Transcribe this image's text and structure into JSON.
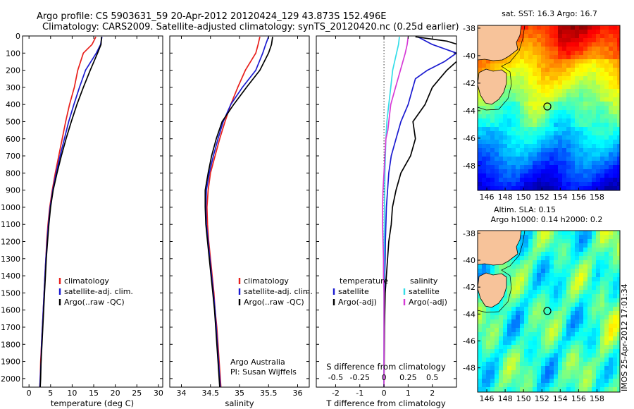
{
  "title": {
    "line1": "Argo profile: CS 5903631_59 20-Apr-2012 20120424_129 43.873S 152.496E",
    "line2": "Climatology: CARS2009. Satellite-adjusted climatology: synTS_20120420.nc (0.25d earlier)"
  },
  "colors": {
    "climatology": "#e8201c",
    "satellite": "#1a1ad0",
    "argo": "#000000",
    "salinity_satellite": "#33dde8",
    "salinity_argo": "#d63ad6"
  },
  "chart_data": [
    {
      "type": "line",
      "name": "temperature",
      "xlabel": "temperature (deg C)",
      "xlim": [
        -1.5,
        31
      ],
      "xticks": [
        "0",
        "5",
        "10",
        "15",
        "20",
        "25",
        "30"
      ],
      "ylim": [
        0,
        2050
      ],
      "yticks": [
        "0",
        "100",
        "200",
        "300",
        "400",
        "500",
        "600",
        "700",
        "800",
        "900",
        "1000",
        "1100",
        "1200",
        "1300",
        "1400",
        "1500",
        "1600",
        "1700",
        "1800",
        "1900",
        "2000"
      ],
      "legend": [
        "climatology",
        "satellite-adj. clim.",
        "Argo(..raw -QC)"
      ],
      "series": [
        {
          "name": "climatology",
          "color": "#e8201c",
          "depth": [
            5,
            50,
            100,
            200,
            300,
            400,
            500,
            600,
            700,
            800,
            900,
            1000,
            1100,
            1200,
            1300,
            1400,
            1500,
            1600,
            1700,
            1800,
            1900,
            2000,
            2050
          ],
          "values": [
            15.5,
            14.6,
            12.6,
            11.3,
            10.5,
            9.4,
            8.5,
            7.7,
            6.9,
            6.1,
            5.4,
            4.8,
            4.4,
            4.1,
            3.9,
            3.7,
            3.5,
            3.3,
            3.1,
            2.9,
            2.7,
            2.6,
            2.5
          ]
        },
        {
          "name": "satellite-adj. clim.",
          "color": "#1a1ad0",
          "depth": [
            5,
            50,
            100,
            200,
            300,
            400,
            500,
            600,
            700,
            800,
            900,
            1000,
            1100,
            1200,
            1300,
            1400,
            1500,
            1600,
            1700,
            1800,
            1900,
            2000,
            2050
          ],
          "values": [
            16.9,
            16.6,
            15.6,
            13.1,
            11.7,
            10.4,
            9.2,
            8.2,
            7.2,
            6.3,
            5.5,
            4.9,
            4.5,
            4.2,
            3.9,
            3.7,
            3.5,
            3.3,
            3.1,
            2.9,
            2.8,
            2.6,
            2.5
          ]
        },
        {
          "name": "Argo(..raw -QC)",
          "color": "#000000",
          "depth": [
            5,
            50,
            100,
            200,
            300,
            400,
            500,
            600,
            700,
            800,
            900,
            1000,
            1100,
            1200,
            1300,
            1400,
            1500,
            1600,
            1700,
            1800,
            1900,
            2000,
            2050
          ],
          "values": [
            16.8,
            16.7,
            15.9,
            14.2,
            12.6,
            11.1,
            9.8,
            8.6,
            7.5,
            6.5,
            5.6,
            5.0,
            4.6,
            4.3,
            4.0,
            3.8,
            3.6,
            3.4,
            3.2,
            3.0,
            2.8,
            2.7,
            2.6
          ]
        }
      ]
    },
    {
      "type": "line",
      "name": "salinity",
      "xlabel": "salinity",
      "xlim": [
        33.8,
        36.2
      ],
      "xticks": [
        "34",
        "34.5",
        "35",
        "35.5",
        "36"
      ],
      "ylim": [
        0,
        2050
      ],
      "legend": [
        "climatology",
        "satellite-adj. clim.",
        "Argo(..raw -QC)"
      ],
      "annotation": [
        "Argo Australia",
        "PI: Susan Wijffels"
      ],
      "series": [
        {
          "name": "climatology",
          "color": "#e8201c",
          "depth": [
            5,
            50,
            100,
            200,
            300,
            400,
            500,
            600,
            700,
            800,
            900,
            1000,
            1100,
            1200,
            1300,
            1400,
            1500,
            1600,
            1700,
            1800,
            1900,
            2000,
            2050
          ],
          "values": [
            35.35,
            35.32,
            35.28,
            35.1,
            34.97,
            34.85,
            34.75,
            34.66,
            34.58,
            34.5,
            34.46,
            34.44,
            34.45,
            34.47,
            34.5,
            34.53,
            34.56,
            34.58,
            34.61,
            34.63,
            34.65,
            34.67,
            34.68
          ]
        },
        {
          "name": "satellite-adj. clim.",
          "color": "#1a1ad0",
          "depth": [
            5,
            50,
            100,
            200,
            300,
            400,
            500,
            600,
            700,
            800,
            900,
            1000,
            1100,
            1200,
            1300,
            1400,
            1500,
            1600,
            1700,
            1800,
            1900,
            2000,
            2050
          ],
          "values": [
            35.5,
            35.45,
            35.4,
            35.28,
            35.05,
            34.85,
            34.72,
            34.63,
            34.55,
            34.48,
            34.43,
            34.42,
            34.43,
            34.46,
            34.49,
            34.52,
            34.55,
            34.58,
            34.6,
            34.62,
            34.64,
            34.66,
            34.67
          ]
        },
        {
          "name": "Argo(..raw -QC)",
          "color": "#000000",
          "depth": [
            5,
            50,
            100,
            200,
            300,
            400,
            500,
            600,
            700,
            800,
            900,
            1000,
            1100,
            1200,
            1300,
            1400,
            1500,
            1600,
            1700,
            1800,
            1900,
            2000,
            2050
          ],
          "values": [
            35.57,
            35.55,
            35.5,
            35.35,
            35.12,
            34.9,
            34.7,
            34.6,
            34.52,
            34.46,
            34.41,
            34.41,
            34.42,
            34.45,
            34.48,
            34.51,
            34.54,
            34.57,
            34.59,
            34.61,
            34.63,
            34.65,
            34.66
          ]
        }
      ]
    },
    {
      "type": "line",
      "name": "differences",
      "xlabel": "T difference from climatology",
      "xlabel_top": "S difference from climatology",
      "xlim": [
        -2.8,
        3.0
      ],
      "xticks": [
        "-2",
        "-1",
        "0",
        "1",
        "2"
      ],
      "xticks_values": [
        -2,
        -1,
        0,
        1,
        2
      ],
      "xticks_top": [
        "-0.5",
        "-0.25",
        "0",
        "0.25",
        "0.5"
      ],
      "xticks_top_values": [
        -0.5,
        -0.25,
        0,
        0.25,
        0.5
      ],
      "ylim": [
        0,
        2050
      ],
      "legend_temperature_title": "temperature",
      "legend_temperature": [
        "satellite",
        "Argo(-adj)"
      ],
      "legend_salinity_title": "salinity",
      "legend_salinity": [
        "satellite",
        "Argo(-adj)"
      ],
      "series": [
        {
          "name": "T satellite",
          "color": "#1a1ad0",
          "units": "T",
          "depth": [
            5,
            50,
            100,
            150,
            200,
            250,
            300,
            400,
            500,
            600,
            700,
            800,
            900,
            1000,
            1100,
            1200,
            1300,
            1400,
            1500,
            1700,
            1900,
            2050
          ],
          "values": [
            1.4,
            2.0,
            3.0,
            2.5,
            1.8,
            1.3,
            1.2,
            1.0,
            0.7,
            0.5,
            0.3,
            0.2,
            0.15,
            0.1,
            0.08,
            0.06,
            0.05,
            0.03,
            0.02,
            0.01,
            0.0,
            0.0
          ]
        },
        {
          "name": "T Argo(-adj)",
          "color": "#000000",
          "units": "T",
          "depth": [
            5,
            30,
            60,
            100,
            150,
            200,
            250,
            300,
            400,
            500,
            600,
            700,
            800,
            900,
            1000,
            1100,
            1200,
            1300,
            1400,
            1500,
            1700,
            1900,
            2050
          ],
          "values": [
            1.3,
            2.6,
            3.3,
            3.7,
            3.0,
            2.6,
            2.3,
            2.0,
            1.7,
            1.2,
            1.3,
            1.1,
            0.7,
            0.5,
            0.35,
            0.3,
            0.2,
            0.15,
            0.1,
            0.05,
            0.02,
            0.01,
            0.0
          ]
        },
        {
          "name": "S satellite",
          "color": "#33dde8",
          "units": "S",
          "depth": [
            5,
            50,
            100,
            200,
            300,
            400,
            500,
            600,
            700,
            800,
            900,
            1000,
            1100,
            1200,
            1300,
            1400,
            1500,
            1700,
            1900,
            2050
          ],
          "values": [
            0.16,
            0.15,
            0.13,
            0.09,
            0.07,
            0.05,
            0.03,
            0.02,
            0.015,
            0.01,
            0.008,
            0.005,
            0.004,
            0.003,
            0.002,
            0.001,
            0.0,
            0.0,
            0.0,
            0.0
          ]
        },
        {
          "name": "S Argo(-adj)",
          "color": "#d63ad6",
          "units": "S",
          "depth": [
            5,
            50,
            100,
            200,
            300,
            400,
            500,
            550,
            600,
            700,
            800,
            900,
            1000,
            1100,
            1200,
            1300,
            1400,
            1500,
            1700,
            1900,
            2050
          ],
          "values": [
            0.25,
            0.24,
            0.22,
            0.17,
            0.12,
            0.07,
            0.05,
            0.04,
            0.02,
            0.01,
            0.0,
            -0.01,
            -0.015,
            -0.015,
            -0.01,
            -0.005,
            -0.005,
            0.0,
            0.0,
            0.0,
            0.0
          ]
        }
      ]
    }
  ],
  "maps": {
    "xticks": [
      "146",
      "148",
      "150",
      "152",
      "154",
      "156",
      "158"
    ],
    "yticks": [
      "-38",
      "-40",
      "-42",
      "-44",
      "-46",
      "-48"
    ],
    "sst": {
      "title": "sat. SST: 16.3 Argo: 16.7",
      "float_lon": 152.5,
      "float_lat": -43.873
    },
    "sla": {
      "title1": "Altim. SLA: 0.15",
      "title2": "Argo h1000: 0.14 h2000: 0.2",
      "float_lon": 152.5,
      "float_lat": -43.873
    },
    "credit": "IMOS 25-Apr-2012 17:01:34"
  }
}
